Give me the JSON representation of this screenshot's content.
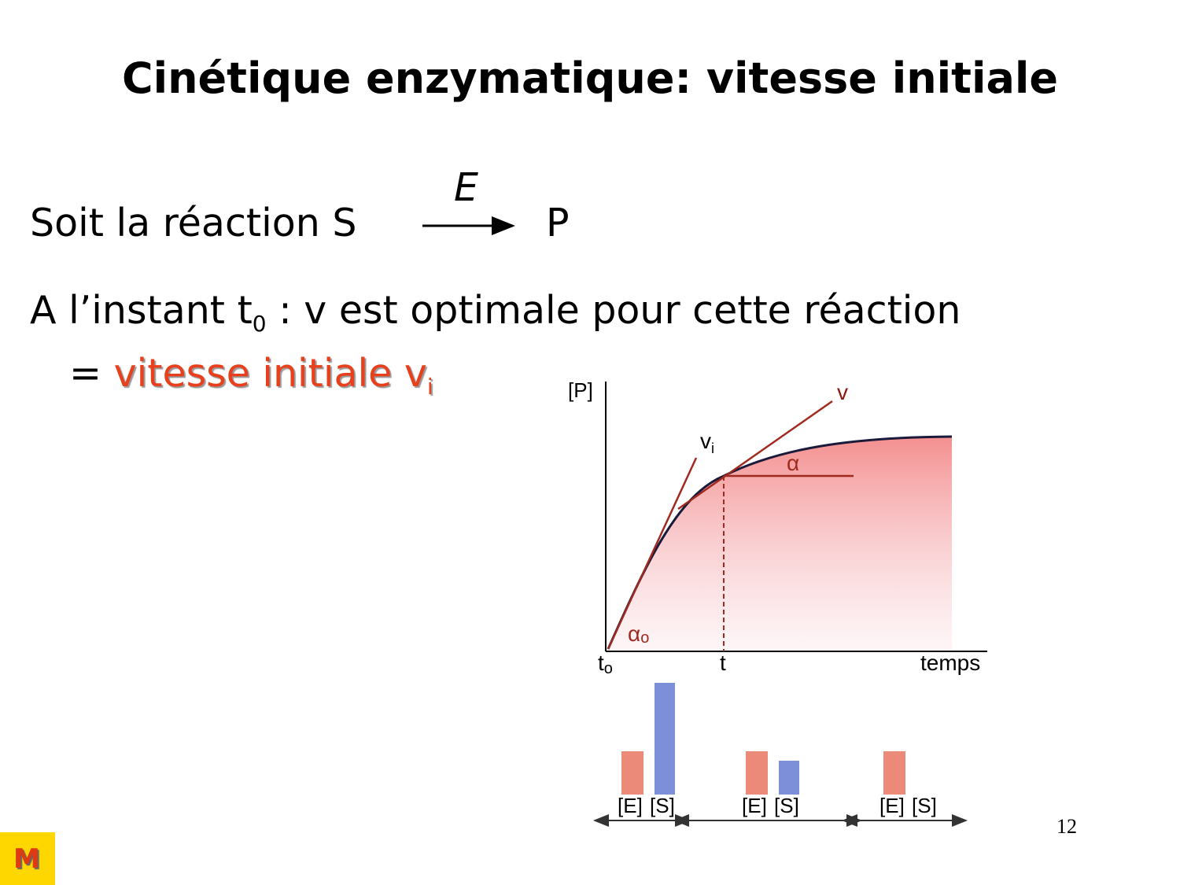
{
  "title": "Cinétique enzymatique: vitesse initiale",
  "reaction": {
    "prefix": "Soit la réaction S",
    "enzyme": "E",
    "product": "P"
  },
  "statement": {
    "text": "A l’instant t",
    "subscript": "0",
    "rest": ": v est optimale pour cette réaction"
  },
  "definition": {
    "prefix": "=",
    "highlight": "vitesse initiale v",
    "subscript": "i"
  },
  "figure": {
    "y_label": "[P]",
    "tangent_label": "v",
    "initial_label": "v",
    "initial_sub": "i",
    "angle": "α",
    "angle0": "α",
    "angle0_sub": "o",
    "t0": "t",
    "t0_sub": "o",
    "t": "t",
    "x_label": "temps",
    "groups": [
      {
        "e": "[E]",
        "s": "[S]"
      },
      {
        "e": "[E]",
        "s": "[S]"
      },
      {
        "e": "[E]",
        "s": "[S]"
      }
    ]
  },
  "page_number": "12",
  "logo": "M"
}
